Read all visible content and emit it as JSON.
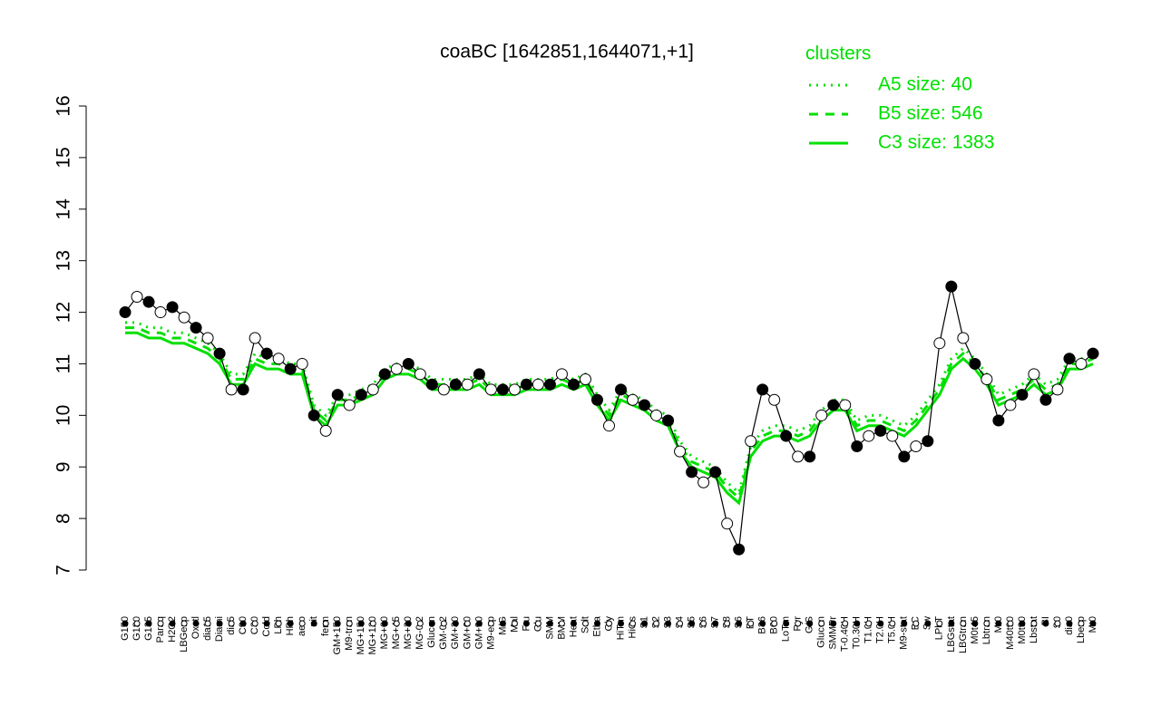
{
  "chart_data": {
    "type": "line",
    "title": "coaBC [1642851,1644071,+1]",
    "categories": [
      "G150",
      "G180",
      "G135",
      "Paraq",
      "H2O2",
      "LBGexp",
      "Oxctl",
      "dia15",
      "Diami",
      "dia5",
      "C90",
      "C30",
      "Cold",
      "LPh",
      "HPh",
      "aero",
      "nit",
      "ferm",
      "GM+150",
      "M9-tran",
      "MG+150",
      "MG+120",
      "MG+60",
      "MG+45",
      "MG+30",
      "MG-0.2",
      "Glucon",
      "GM-0.2",
      "GM+30",
      "GM+60",
      "GM+90",
      "M9-exp",
      "M/G",
      "Mal",
      "Fru",
      "Glu",
      "SMM",
      "BMM",
      "Heat",
      "Salt",
      "Etha",
      "Gly",
      "HiTm",
      "HiOs",
      "S1",
      "S2",
      "S3",
      "S4",
      "S5",
      "S6",
      "S7",
      "S8",
      "S6",
      "BT",
      "B36",
      "B60",
      "LoTm",
      "Pyr",
      "G/S",
      "Glucon",
      "SMMPr",
      "T-0.40H",
      "T0.30H",
      "T1.0H",
      "T2.0H",
      "T5.0H",
      "M9-stat",
      "BC",
      "Sw",
      "LPhT",
      "LBGstat",
      "LBGtran",
      "M0t45",
      "Lbtran",
      "Mt0",
      "M40t90",
      "M0t90",
      "Lbstat",
      "BI",
      "S0",
      "dia0",
      "Lbexp",
      "Mt0"
    ],
    "values": [
      12.0,
      12.3,
      12.2,
      12.0,
      12.1,
      11.9,
      11.7,
      11.5,
      11.2,
      10.5,
      10.5,
      11.5,
      11.2,
      11.1,
      10.9,
      11.0,
      10.0,
      9.7,
      10.4,
      10.2,
      10.4,
      10.5,
      10.8,
      10.9,
      11.0,
      10.8,
      10.6,
      10.5,
      10.6,
      10.6,
      10.8,
      10.5,
      10.5,
      10.5,
      10.6,
      10.6,
      10.6,
      10.8,
      10.6,
      10.7,
      10.3,
      9.8,
      10.5,
      10.3,
      10.2,
      10.0,
      9.9,
      9.3,
      8.9,
      8.7,
      8.9,
      7.9,
      7.4,
      9.5,
      10.5,
      10.3,
      9.6,
      9.2,
      9.2,
      10.0,
      10.2,
      10.2,
      9.4,
      9.6,
      9.7,
      9.6,
      9.2,
      9.4,
      9.5,
      11.4,
      12.5,
      11.5,
      11.0,
      10.7,
      9.9,
      10.2,
      10.4,
      10.8,
      10.3,
      10.5,
      11.1,
      11.0,
      11.2
    ],
    "color": "#000000",
    "legend_title": "clusters",
    "legend_color": "#00e000",
    "series": [
      {
        "name": "A5 size: 40",
        "color": "#00e000",
        "style": "dotted",
        "values": [
          11.8,
          11.8,
          11.7,
          11.7,
          11.6,
          11.6,
          11.5,
          11.4,
          11.2,
          10.8,
          10.8,
          11.2,
          11.1,
          11.1,
          11.0,
          11.0,
          10.2,
          10.0,
          10.4,
          10.4,
          10.5,
          10.6,
          10.9,
          11.0,
          11.0,
          10.9,
          10.7,
          10.7,
          10.7,
          10.7,
          10.8,
          10.6,
          10.6,
          10.6,
          10.7,
          10.7,
          10.7,
          10.8,
          10.7,
          10.8,
          10.4,
          10.1,
          10.5,
          10.4,
          10.3,
          10.1,
          10.0,
          9.5,
          9.2,
          9.1,
          9.0,
          8.7,
          8.5,
          9.4,
          9.7,
          9.8,
          9.8,
          9.7,
          9.8,
          10.1,
          10.3,
          10.3,
          9.9,
          10.0,
          10.0,
          9.9,
          9.8,
          10.0,
          10.3,
          10.6,
          11.1,
          11.3,
          11.1,
          10.8,
          10.4,
          10.5,
          10.6,
          10.8,
          10.6,
          10.7,
          11.1,
          11.1,
          11.2
        ]
      },
      {
        "name": "B5 size: 546",
        "color": "#00e000",
        "style": "dashed",
        "values": [
          11.7,
          11.7,
          11.6,
          11.6,
          11.5,
          11.5,
          11.4,
          11.3,
          11.1,
          10.7,
          10.7,
          11.1,
          11.0,
          11.0,
          10.9,
          10.9,
          10.1,
          9.9,
          10.3,
          10.3,
          10.4,
          10.5,
          10.8,
          10.9,
          10.9,
          10.8,
          10.6,
          10.6,
          10.6,
          10.6,
          10.7,
          10.5,
          10.5,
          10.5,
          10.6,
          10.6,
          10.6,
          10.7,
          10.6,
          10.7,
          10.3,
          10.0,
          10.4,
          10.3,
          10.2,
          10.0,
          9.9,
          9.4,
          9.1,
          9.0,
          8.9,
          8.6,
          8.4,
          9.3,
          9.6,
          9.7,
          9.7,
          9.6,
          9.7,
          10.0,
          10.2,
          10.2,
          9.8,
          9.9,
          9.9,
          9.8,
          9.7,
          9.9,
          10.2,
          10.5,
          11.0,
          11.2,
          11.0,
          10.7,
          10.3,
          10.4,
          10.5,
          10.7,
          10.5,
          10.6,
          11.0,
          11.0,
          11.1
        ]
      },
      {
        "name": "C3 size: 1383",
        "color": "#00e000",
        "style": "solid",
        "values": [
          11.6,
          11.6,
          11.5,
          11.5,
          11.4,
          11.4,
          11.3,
          11.2,
          11.0,
          10.6,
          10.6,
          11.0,
          10.9,
          10.9,
          10.8,
          10.8,
          10.0,
          9.8,
          10.2,
          10.2,
          10.3,
          10.4,
          10.7,
          10.8,
          10.8,
          10.7,
          10.5,
          10.5,
          10.5,
          10.5,
          10.6,
          10.4,
          10.4,
          10.4,
          10.5,
          10.5,
          10.5,
          10.6,
          10.5,
          10.6,
          10.2,
          9.9,
          10.3,
          10.2,
          10.1,
          9.9,
          9.8,
          9.3,
          9.0,
          8.9,
          8.8,
          8.5,
          8.3,
          9.2,
          9.5,
          9.6,
          9.6,
          9.5,
          9.6,
          9.9,
          10.1,
          10.1,
          9.7,
          9.8,
          9.8,
          9.7,
          9.6,
          9.8,
          10.1,
          10.4,
          10.9,
          11.1,
          10.9,
          10.6,
          10.2,
          10.3,
          10.4,
          10.6,
          10.4,
          10.5,
          10.9,
          10.9,
          11.0
        ]
      }
    ],
    "ylim": [
      7,
      16
    ],
    "yticks": [
      7,
      8,
      9,
      10,
      11,
      12,
      13,
      14,
      15,
      16
    ]
  }
}
